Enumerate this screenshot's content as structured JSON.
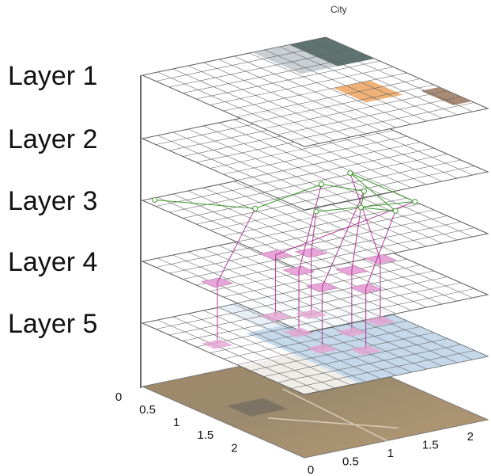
{
  "title": "City",
  "layers": [
    "Layer 1",
    "Layer 2",
    "Layer 3",
    "Layer 4",
    "Layer 5"
  ],
  "axes": {
    "front_ticks": [
      0,
      0.5,
      1,
      1.5,
      2
    ],
    "right_ticks": [
      0,
      0.5,
      1,
      1.5,
      2
    ]
  }
}
